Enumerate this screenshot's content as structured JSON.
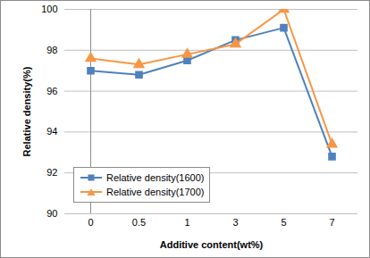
{
  "chart_data": {
    "type": "line",
    "x_label": "Additive content(wt%)",
    "y_label": "Relative density(%)",
    "categories": [
      "0",
      "0.5",
      "1",
      "3",
      "5",
      "7"
    ],
    "series": [
      {
        "name": "Relative density(1600)",
        "color": "#4f81bd",
        "marker": "square",
        "values": [
          97.0,
          96.8,
          97.5,
          98.5,
          99.1,
          92.8
        ]
      },
      {
        "name": "Relative density(1700)",
        "color": "#f79646",
        "marker": "triangle",
        "values": [
          97.6,
          97.3,
          97.8,
          98.3,
          100.0,
          93.4
        ]
      }
    ],
    "ylim": [
      90,
      100
    ],
    "yticks": [
      90,
      92,
      94,
      96,
      98,
      100
    ],
    "grid": true,
    "legend": "lower left"
  }
}
